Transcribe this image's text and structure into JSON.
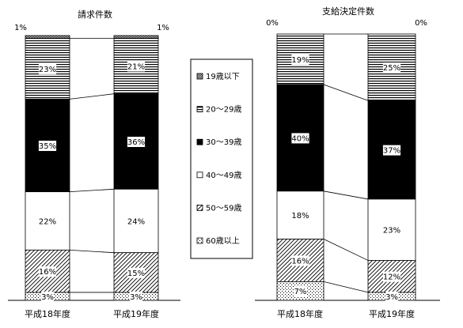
{
  "chart_data": [
    {
      "type": "bar",
      "stacked": true,
      "percent": true,
      "title": "請求件数",
      "categories": [
        "平成18年度",
        "平成19年度"
      ],
      "series": [
        {
          "name": "19歳以下",
          "values": [
            1,
            1
          ],
          "labels": [
            "1%",
            "1%"
          ],
          "pattern": "dots-dark"
        },
        {
          "name": "20～29歳",
          "values": [
            23,
            21
          ],
          "labels": [
            "23%",
            "21%"
          ],
          "pattern": "hlines"
        },
        {
          "name": "30～39歳",
          "values": [
            35,
            36
          ],
          "labels": [
            "35%",
            "36%"
          ],
          "pattern": "solid"
        },
        {
          "name": "40～49歳",
          "values": [
            22,
            24
          ],
          "labels": [
            "22%",
            "24%"
          ],
          "pattern": "white"
        },
        {
          "name": "50～59歳",
          "values": [
            16,
            15
          ],
          "labels": [
            "16%",
            "15%"
          ],
          "pattern": "diag"
        },
        {
          "name": "60歳以上",
          "values": [
            3,
            3
          ],
          "labels": [
            "3%",
            "3%"
          ],
          "pattern": "dots-light"
        }
      ]
    },
    {
      "type": "bar",
      "stacked": true,
      "percent": true,
      "title": "支給決定件数",
      "categories": [
        "平成18年度",
        "平成19年度"
      ],
      "series": [
        {
          "name": "19歳以下",
          "values": [
            0,
            0
          ],
          "labels": [
            "0%",
            "0%"
          ],
          "pattern": "dots-dark"
        },
        {
          "name": "20～29歳",
          "values": [
            19,
            25
          ],
          "labels": [
            "19%",
            "25%"
          ],
          "pattern": "hlines"
        },
        {
          "name": "30～39歳",
          "values": [
            40,
            37
          ],
          "labels": [
            "40%",
            "37%"
          ],
          "pattern": "solid"
        },
        {
          "name": "40～49歳",
          "values": [
            18,
            23
          ],
          "labels": [
            "18%",
            "23%"
          ],
          "pattern": "white"
        },
        {
          "name": "50～59歳",
          "values": [
            16,
            12
          ],
          "labels": [
            "16%",
            "12%"
          ],
          "pattern": "diag"
        },
        {
          "name": "60歳以上",
          "values": [
            7,
            3
          ],
          "labels": [
            "7%",
            "3%"
          ],
          "pattern": "dots-light"
        }
      ]
    }
  ],
  "legend": {
    "placement": "center",
    "items": [
      {
        "label": "19歳以下",
        "pattern": "dots-dark"
      },
      {
        "label": "20～29歳",
        "pattern": "hlines"
      },
      {
        "label": "30～39歳",
        "pattern": "solid"
      },
      {
        "label": "40～49歳",
        "pattern": "white"
      },
      {
        "label": "50～59歳",
        "pattern": "diag"
      },
      {
        "label": "60歳以上",
        "pattern": "dots-light"
      }
    ]
  }
}
